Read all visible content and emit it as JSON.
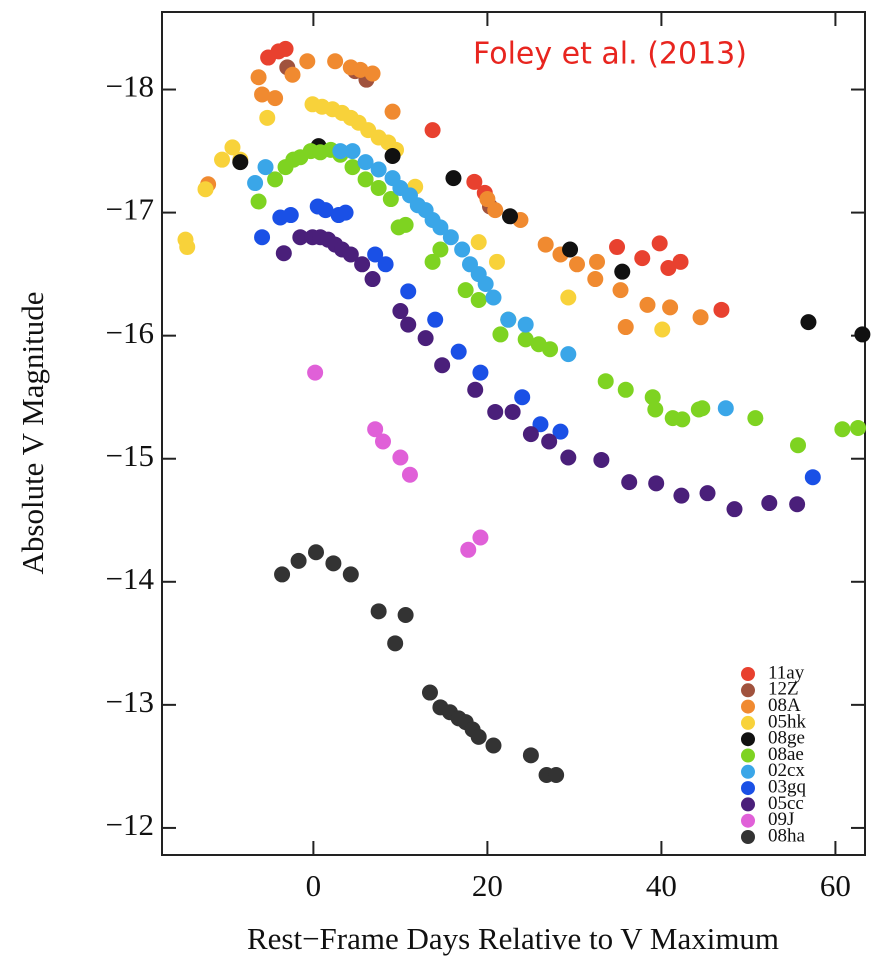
{
  "chart_data": {
    "type": "scatter",
    "annotation": "Foley et al. (2013)",
    "xlabel": "Rest−Frame Days Relative to V Maximum",
    "ylabel": "Absolute V Magnitude",
    "xlim": [
      -17.4,
      63.4
    ],
    "ylim": [
      -11.78,
      -18.63
    ],
    "xticks": [
      0,
      20,
      40,
      60
    ],
    "yticks": [
      {
        "value": -18,
        "label": "−18"
      },
      {
        "value": -17,
        "label": "−17"
      },
      {
        "value": -16,
        "label": "−16"
      },
      {
        "value": -15,
        "label": "−15"
      },
      {
        "value": -14,
        "label": "−14"
      },
      {
        "value": -13,
        "label": "−13"
      },
      {
        "value": -12,
        "label": "−12"
      }
    ],
    "legend": "lower right",
    "series": [
      {
        "name": "11ay",
        "color": "#e8412f",
        "x": [
          -5.2,
          -4.0,
          -3.2,
          13.7,
          18.5,
          19.7,
          34.9,
          37.8,
          39.8,
          40.8,
          42.2,
          46.9
        ],
        "y": [
          -18.26,
          -18.31,
          -18.33,
          -17.67,
          -17.25,
          -17.16,
          -16.72,
          -16.63,
          -16.75,
          -16.55,
          -16.6,
          -16.21
        ]
      },
      {
        "name": "12Z",
        "color": "#a0523d",
        "x": [
          -3.0,
          4.8,
          6.1,
          20.3
        ],
        "y": [
          -18.18,
          -18.15,
          -18.08,
          -17.05
        ]
      },
      {
        "name": "08A",
        "color": "#f08a30",
        "x": [
          -12.1,
          -6.3,
          -5.9,
          -4.4,
          -2.4,
          -0.7,
          2.5,
          4.3,
          5.4,
          6.8,
          9.1,
          20.0,
          20.9,
          23.8,
          26.7,
          28.4,
          30.3,
          32.6,
          32.4,
          35.3,
          35.9,
          38.4,
          41.0,
          44.5
        ],
        "y": [
          -17.23,
          -18.1,
          -17.96,
          -17.93,
          -18.12,
          -18.23,
          -18.23,
          -18.18,
          -18.16,
          -18.13,
          -17.82,
          -17.11,
          -17.02,
          -16.94,
          -16.74,
          -16.66,
          -16.58,
          -16.6,
          -16.46,
          -16.37,
          -16.07,
          -16.25,
          -16.23,
          -16.15
        ]
      },
      {
        "name": "05hk",
        "color": "#f8d23a",
        "x": [
          -14.7,
          -14.5,
          -12.4,
          -10.5,
          -9.3,
          -8.4,
          -5.3,
          -0.1,
          1.0,
          2.2,
          3.3,
          4.3,
          5.2,
          6.3,
          7.5,
          8.6,
          9.5,
          11.7,
          19.0,
          21.1,
          29.3,
          40.1
        ],
        "y": [
          -16.78,
          -16.72,
          -17.19,
          -17.43,
          -17.53,
          -17.43,
          -17.77,
          -17.88,
          -17.86,
          -17.84,
          -17.81,
          -17.77,
          -17.73,
          -17.67,
          -17.61,
          -17.57,
          -17.51,
          -17.21,
          -16.76,
          -16.6,
          -16.31,
          -16.05
        ]
      },
      {
        "name": "08ge",
        "color": "#111111",
        "x": [
          -8.4,
          0.6,
          9.1,
          16.1,
          22.6,
          29.5,
          35.5,
          56.9,
          63.1
        ],
        "y": [
          -17.41,
          -17.54,
          -17.46,
          -17.28,
          -16.97,
          -16.7,
          -16.52,
          -16.11,
          -16.01
        ]
      },
      {
        "name": "08ae",
        "color": "#7ed321",
        "x": [
          -6.3,
          -4.4,
          -3.2,
          -2.3,
          -1.5,
          -0.3,
          0.8,
          2.0,
          3.1,
          4.5,
          6.0,
          7.5,
          8.9,
          9.8,
          10.6,
          13.7,
          14.6,
          17.5,
          19.0,
          21.5,
          22.4,
          24.4,
          25.9,
          27.2,
          33.6,
          35.9,
          39.0,
          39.3,
          41.3,
          42.4,
          44.3,
          44.7,
          50.8,
          55.7,
          60.8,
          62.6
        ],
        "y": [
          -17.09,
          -17.27,
          -17.37,
          -17.43,
          -17.45,
          -17.5,
          -17.49,
          -17.51,
          -17.47,
          -17.37,
          -17.27,
          -17.2,
          -17.11,
          -16.88,
          -16.9,
          -16.6,
          -16.7,
          -16.37,
          -16.29,
          -16.01,
          -16.13,
          -15.97,
          -15.93,
          -15.89,
          -15.63,
          -15.56,
          -15.5,
          -15.4,
          -15.33,
          -15.32,
          -15.4,
          -15.41,
          -15.33,
          -15.11,
          -15.24,
          -15.25
        ]
      },
      {
        "name": "02cx",
        "color": "#3aa6e8",
        "x": [
          -6.7,
          -5.5,
          3.1,
          4.5,
          6.0,
          7.5,
          9.1,
          10.0,
          11.1,
          12.0,
          12.9,
          13.7,
          14.6,
          15.8,
          17.1,
          18.0,
          19.0,
          19.8,
          20.7,
          22.4,
          24.4,
          29.3,
          47.4
        ],
        "y": [
          -17.24,
          -17.37,
          -17.5,
          -17.5,
          -17.41,
          -17.35,
          -17.28,
          -17.2,
          -17.14,
          -17.06,
          -17.02,
          -16.94,
          -16.88,
          -16.8,
          -16.7,
          -16.58,
          -16.5,
          -16.42,
          -16.31,
          -16.13,
          -16.09,
          -15.85,
          -15.41
        ]
      },
      {
        "name": "03gq",
        "color": "#1a50e6",
        "x": [
          -5.9,
          -3.8,
          -2.6,
          0.5,
          1.4,
          2.9,
          3.7,
          7.1,
          8.3,
          10.9,
          14.0,
          16.7,
          19.2,
          24.0,
          26.1,
          28.4,
          57.4
        ],
        "y": [
          -16.8,
          -16.96,
          -16.98,
          -17.05,
          -17.02,
          -16.98,
          -17.0,
          -16.66,
          -16.58,
          -16.36,
          -16.13,
          -15.87,
          -15.7,
          -15.5,
          -15.28,
          -15.22,
          -14.85
        ]
      },
      {
        "name": "05cc",
        "color": "#4a1f7a",
        "x": [
          -3.4,
          -1.5,
          -0.1,
          0.8,
          1.7,
          2.5,
          3.3,
          4.3,
          5.6,
          6.8,
          10.0,
          10.9,
          12.9,
          14.8,
          18.6,
          20.9,
          22.9,
          25.0,
          27.1,
          29.3,
          33.1,
          36.3,
          39.4,
          42.3,
          45.3,
          48.4,
          52.4,
          55.6
        ],
        "y": [
          -16.67,
          -16.8,
          -16.8,
          -16.8,
          -16.78,
          -16.74,
          -16.7,
          -16.66,
          -16.58,
          -16.46,
          -16.2,
          -16.09,
          -15.98,
          -15.76,
          -15.56,
          -15.38,
          -15.38,
          -15.2,
          -15.14,
          -15.01,
          -14.99,
          -14.81,
          -14.8,
          -14.7,
          -14.72,
          -14.59,
          -14.64,
          -14.63
        ]
      },
      {
        "name": "09J",
        "color": "#e060d8",
        "x": [
          0.2,
          7.1,
          8.0,
          10.0,
          11.1,
          17.8,
          19.2
        ],
        "y": [
          -15.7,
          -15.24,
          -15.14,
          -15.01,
          -14.87,
          -14.26,
          -14.36
        ]
      },
      {
        "name": "08ha",
        "color": "#333333",
        "x": [
          -3.6,
          -1.7,
          0.3,
          2.3,
          4.3,
          7.5,
          9.4,
          10.6,
          13.4,
          14.6,
          15.7,
          16.7,
          17.5,
          18.3,
          19.0,
          20.7,
          25.0,
          26.8,
          27.9
        ],
        "y": [
          -14.06,
          -14.17,
          -14.24,
          -14.15,
          -14.06,
          -13.76,
          -13.5,
          -13.73,
          -13.1,
          -12.98,
          -12.94,
          -12.89,
          -12.86,
          -12.8,
          -12.74,
          -12.67,
          -12.59,
          -12.43,
          -12.43
        ]
      }
    ]
  }
}
